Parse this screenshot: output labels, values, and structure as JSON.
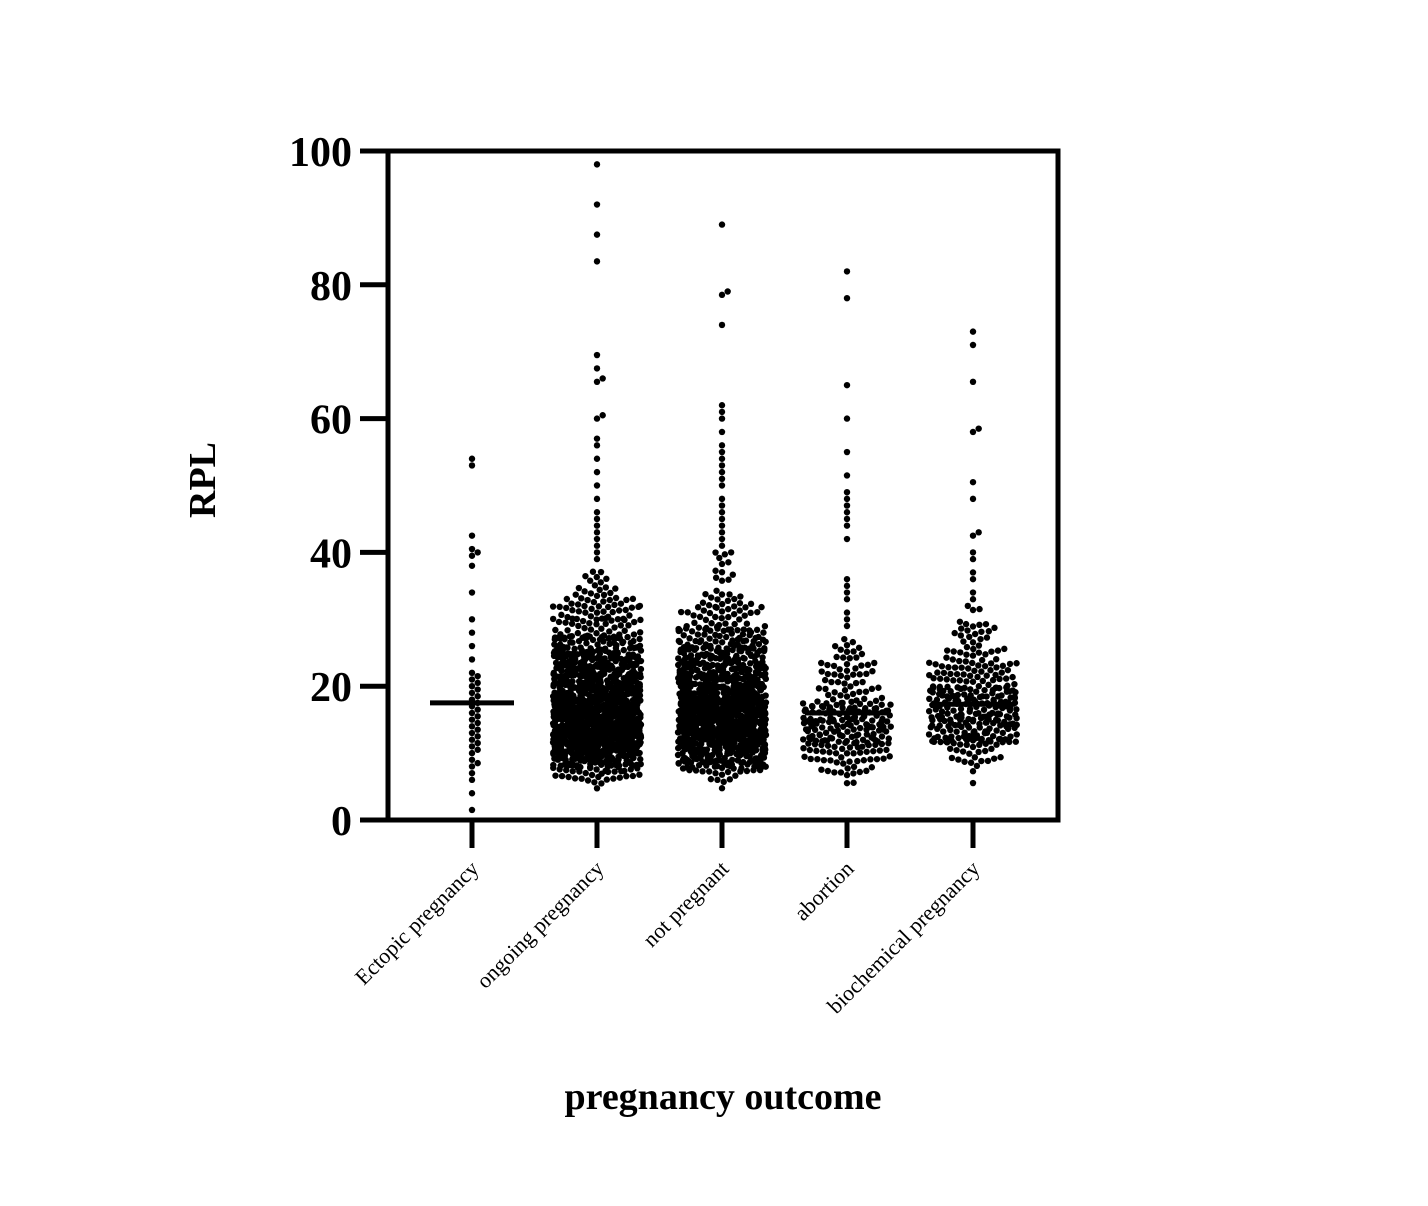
{
  "chart_data": {
    "type": "scatter",
    "subtype": "dot-plot",
    "title": "",
    "xlabel": "pregnancy outcome",
    "ylabel": "RPL",
    "ylim": [
      0,
      100
    ],
    "yticks": [
      0,
      20,
      40,
      60,
      80,
      100
    ],
    "grid": false,
    "legend": "none",
    "point_color": "#000000",
    "categories": [
      "Ectopic pregnancy",
      "ongoing pregnancy",
      "not pregnant",
      "abortion",
      "biochemical pregnancy"
    ],
    "series": [
      {
        "category": "Ectopic pregnancy",
        "median": 17.5,
        "approx_n": 45,
        "values": [
          1.5,
          4,
          6,
          7,
          8,
          8.5,
          9,
          10,
          10.5,
          11,
          11.5,
          12,
          12.5,
          13,
          13.5,
          14,
          14.5,
          15,
          15.5,
          16,
          16.5,
          17,
          17.5,
          18,
          18.5,
          19,
          19.5,
          20,
          20.5,
          21,
          21.5,
          22,
          24,
          26,
          28,
          30,
          34,
          38,
          39.5,
          40,
          40.5,
          42.5,
          53,
          54
        ]
      },
      {
        "category": "ongoing pregnancy",
        "median": 16.5,
        "approx_n": 1500,
        "outliers": [
          39,
          40,
          41,
          42,
          43,
          44,
          45,
          46,
          48,
          50,
          52,
          54,
          56,
          57,
          60,
          60.5,
          65.5,
          66,
          67.5,
          69.5,
          83.5,
          87.5,
          92,
          98
        ]
      },
      {
        "category": "not pregnant",
        "median": 16.5,
        "approx_n": 1300,
        "outliers": [
          40,
          41,
          42,
          43,
          44,
          45,
          46,
          47,
          48,
          50,
          51,
          52,
          53,
          54,
          55,
          56,
          58,
          60,
          61,
          62,
          74,
          78.5,
          79,
          89
        ]
      },
      {
        "category": "abortion",
        "median": 16,
        "approx_n": 260,
        "outliers": [
          29,
          30,
          31,
          33,
          34,
          35,
          36,
          42,
          44,
          45,
          46,
          47,
          48,
          49,
          51.5,
          55,
          60,
          65,
          78,
          82
        ]
      },
      {
        "category": "biochemical pregnancy",
        "median": 17.3,
        "approx_n": 330,
        "outliers": [
          32,
          33,
          34,
          36,
          37,
          39,
          40,
          42.5,
          43,
          48,
          50.5,
          58,
          58.5,
          65.5,
          71,
          73
        ]
      }
    ]
  }
}
